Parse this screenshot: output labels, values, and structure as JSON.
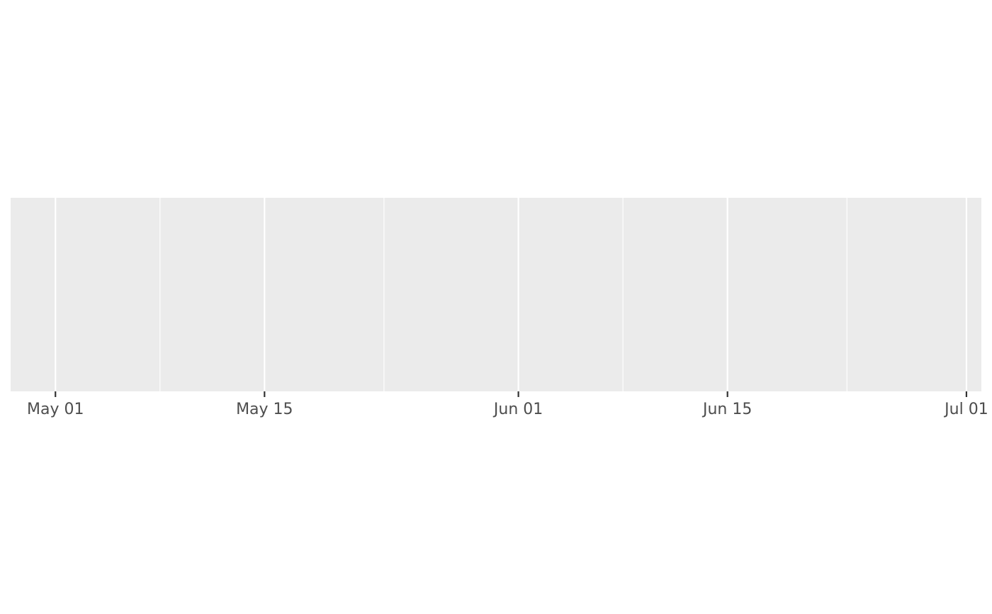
{
  "chart_data": {
    "type": "line",
    "title": "",
    "xlabel": "",
    "ylabel": "",
    "x_axis": {
      "scale": "date",
      "range": [
        "2025-04-28",
        "2025-07-02"
      ],
      "major_ticks": [
        {
          "date": "2025-05-01",
          "label": "May 01"
        },
        {
          "date": "2025-05-15",
          "label": "May 15"
        },
        {
          "date": "2025-06-01",
          "label": "Jun 01"
        },
        {
          "date": "2025-06-15",
          "label": "Jun 15"
        },
        {
          "date": "2025-07-01",
          "label": "Jul 01"
        }
      ],
      "minor_ticks": [
        "2025-05-08",
        "2025-05-23",
        "2025-06-08",
        "2025-06-23"
      ]
    },
    "y_axis": {
      "visible": false
    },
    "series": [],
    "grid": true,
    "legend": "none",
    "colors": {
      "panel_background": "#ebebeb",
      "grid_major": "#ffffff",
      "grid_minor": "#ffffff",
      "tick_mark": "#333333",
      "tick_label": "#4d4d4d"
    }
  }
}
